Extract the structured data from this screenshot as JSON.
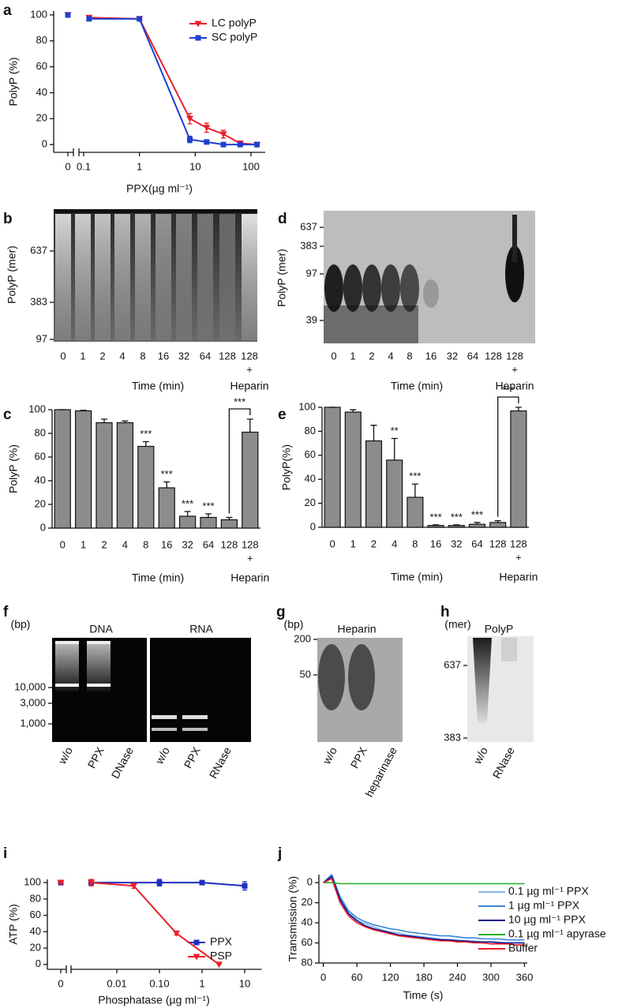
{
  "chart_data": [
    {
      "label": "a",
      "type": "line",
      "x_scale": "log",
      "ylabel": "PolyP (%)",
      "xlabel": "PPX(µg ml⁻¹)",
      "x": [
        0,
        0.125,
        1,
        8,
        16,
        32,
        64,
        128
      ],
      "series": [
        {
          "name": "LC polyP",
          "color": "#e8202a",
          "marker": "triangle-down",
          "values": [
            100,
            98,
            97,
            20,
            13,
            8,
            1,
            0
          ],
          "errors": [
            1,
            1.5,
            1,
            4,
            3.5,
            3,
            1,
            0.5
          ]
        },
        {
          "name": "SC polyP",
          "color": "#1f3fcf",
          "marker": "square",
          "values": [
            100,
            97,
            97,
            4,
            2,
            0,
            0,
            0
          ],
          "errors": [
            1,
            1.5,
            1,
            2.5,
            1,
            0.5,
            0.5,
            0.5
          ]
        }
      ],
      "xlim": [
        0,
        180
      ],
      "xticks": [
        0,
        0.1,
        1,
        10,
        100
      ],
      "ylim": [
        -6,
        103
      ],
      "yticks": [
        0,
        20,
        40,
        60,
        80,
        100
      ],
      "legend": "upper right"
    },
    {
      "label": "b",
      "type": "gel",
      "ylabel": "PolyP (mer)",
      "yticks": [
        637,
        383,
        97
      ],
      "panels": [
        {
          "categories": [
            "0",
            "1",
            "2",
            "4",
            "8",
            "16",
            "32",
            "64",
            "128",
            "128"
          ]
        }
      ],
      "plus": "+",
      "xlabel": "Time (min)",
      "group_label": "Heparin"
    },
    {
      "label": "c",
      "type": "bar",
      "ylabel": "PolyP (%)",
      "color": "#8c8c8c",
      "categories": [
        "0",
        "1",
        "2",
        "4",
        "8",
        "16",
        "32",
        "64",
        "128",
        "128"
      ],
      "values": [
        100,
        99,
        89,
        89,
        69,
        34,
        10,
        9,
        7,
        81
      ],
      "errors": [
        0,
        0.5,
        3,
        1.5,
        4,
        5,
        4,
        3,
        2,
        11
      ],
      "significance": [
        null,
        null,
        null,
        null,
        "***",
        "***",
        "***",
        "***",
        null,
        null
      ],
      "bracket_label": "***",
      "plus": "+",
      "xlabel": "Time (min)",
      "group_label": "Heparin",
      "ylim": [
        0,
        100
      ],
      "yticks": [
        0,
        20,
        40,
        60,
        80,
        100
      ]
    },
    {
      "label": "d",
      "type": "gel",
      "ylabel": "PolyP (mer)",
      "yticks": [
        637,
        383,
        97,
        39
      ],
      "panels": [
        {
          "categories": [
            "0",
            "1",
            "2",
            "4",
            "8",
            "16",
            "32",
            "64",
            "128",
            "128"
          ]
        }
      ],
      "plus": "+",
      "xlabel": "Time (min)",
      "group_label": "Heparin"
    },
    {
      "label": "e",
      "type": "bar",
      "ylabel": "PolyP(%)",
      "color": "#8c8c8c",
      "categories": [
        "0",
        "1",
        "2",
        "4",
        "8",
        "16",
        "32",
        "64",
        "128",
        "128"
      ],
      "values": [
        100,
        96,
        72,
        56,
        25,
        1.5,
        1.5,
        2.5,
        4,
        97
      ],
      "errors": [
        0,
        2,
        13,
        18,
        11,
        0.5,
        0.5,
        1.5,
        1.5,
        3
      ],
      "significance": [
        null,
        null,
        null,
        "**",
        "***",
        "***",
        "***",
        "***",
        null,
        null
      ],
      "bracket_label": "***",
      "plus": "+",
      "xlabel": "Time (min)",
      "group_label": "Heparin",
      "ylim": [
        0,
        100
      ],
      "yticks": [
        0,
        20,
        40,
        60,
        80,
        100
      ]
    },
    {
      "label": "f",
      "type": "gel",
      "unit": "(bp)",
      "yticks": [
        {
          "value": 10000,
          "label": "10,000"
        },
        {
          "value": 3000,
          "label": "3,000"
        },
        {
          "value": 1000,
          "label": "1,000"
        }
      ],
      "panels": [
        {
          "title": "DNA",
          "categories": [
            "w/o",
            "PPX",
            "DNase"
          ]
        },
        {
          "title": "RNA",
          "categories": [
            "w/o",
            "PPX",
            "RNase"
          ]
        }
      ]
    },
    {
      "label": "g",
      "type": "gel",
      "unit": "(bp)",
      "yticks": [
        200,
        50
      ],
      "panels": [
        {
          "title": "Heparin",
          "categories": [
            "w/o",
            "PPX",
            "heparinase"
          ]
        }
      ]
    },
    {
      "label": "h",
      "type": "gel",
      "unit": "(mer)",
      "yticks": [
        637,
        383
      ],
      "panels": [
        {
          "title": "PolyP",
          "categories": [
            "w/o",
            "RNase"
          ]
        }
      ]
    },
    {
      "label": "i",
      "type": "line",
      "x_scale": "log",
      "ylabel": "ATP (%)",
      "xlabel": "Phosphatase (µg ml⁻¹)",
      "series": [
        {
          "name": "PPX",
          "color": "#1f2fbf",
          "marker": "square",
          "x": [
            0,
            0.0025,
            0.1,
            1,
            10
          ],
          "values": [
            100,
            100,
            100,
            100,
            96
          ],
          "errors": [
            1,
            1,
            4,
            1,
            5
          ]
        },
        {
          "name": "PSP",
          "color": "#e8202a",
          "marker": "triangle-down",
          "x": [
            0,
            0.0025,
            0.025,
            0.25,
            2.5
          ],
          "values": [
            100,
            100,
            96,
            38,
            0
          ],
          "errors": [
            1,
            4,
            3,
            2,
            0
          ]
        }
      ],
      "xlim": [
        0,
        25
      ],
      "xticks": [
        0,
        0.01,
        {
          "value": 0.1,
          "label": "0.10"
        },
        1,
        10
      ],
      "ylim": [
        -6,
        104
      ],
      "yticks": [
        0,
        20,
        40,
        60,
        80,
        100
      ],
      "legend": "lower right"
    },
    {
      "label": "j",
      "type": "line",
      "ylabel": "Transmission (%)",
      "xlabel": "Time (s)",
      "x": [
        0,
        15,
        30,
        45,
        60,
        75,
        90,
        105,
        120,
        135,
        150,
        165,
        180,
        195,
        210,
        225,
        240,
        255,
        270,
        285,
        300,
        315,
        330,
        345,
        360
      ],
      "series": [
        {
          "name": "0.1 µg ml⁻¹ PPX",
          "color": "#86b8e8",
          "values": [
            0,
            -6,
            15,
            30,
            37,
            41,
            44,
            47,
            49,
            50,
            52,
            53,
            54,
            55,
            56,
            57,
            57,
            58,
            58,
            59,
            59,
            59,
            60,
            60,
            60
          ]
        },
        {
          "name": "1 µg ml⁻¹ PPX",
          "color": "#3a86d8",
          "values": [
            0,
            -8,
            14,
            28,
            35,
            39,
            42,
            44,
            46,
            47,
            49,
            50,
            51,
            52,
            53,
            53,
            54,
            55,
            55,
            56,
            56,
            56,
            57,
            57,
            57
          ]
        },
        {
          "name": "10 µg ml⁻¹ PPX",
          "color": "#0a0a8c",
          "values": [
            0,
            -6,
            17,
            31,
            38,
            43,
            46,
            48,
            50,
            52,
            53,
            54,
            55,
            56,
            57,
            57,
            58,
            58,
            59,
            59,
            59,
            60,
            60,
            60,
            60
          ]
        },
        {
          "name": "0.1 µg ml⁻¹ apyrase",
          "color": "#22b022",
          "values": [
            0,
            0,
            1,
            1,
            1,
            1,
            1,
            1,
            1,
            1,
            1,
            1,
            1,
            1,
            1,
            1,
            1,
            1,
            1,
            1,
            1,
            1,
            1,
            1,
            1
          ]
        },
        {
          "name": "Buffer",
          "color": "#e8202a",
          "values": [
            0,
            -4,
            20,
            33,
            40,
            44,
            47,
            49,
            51,
            53,
            54,
            55,
            56,
            57,
            58,
            58,
            59,
            59,
            60,
            60,
            61,
            61,
            61,
            62,
            62
          ]
        }
      ],
      "xlim": [
        -8,
        365
      ],
      "xticks": [
        0,
        60,
        120,
        180,
        240,
        300,
        360
      ],
      "ylim": [
        80,
        -8
      ],
      "yticks": [
        0,
        20,
        40,
        60,
        80
      ],
      "legend": "right"
    }
  ]
}
